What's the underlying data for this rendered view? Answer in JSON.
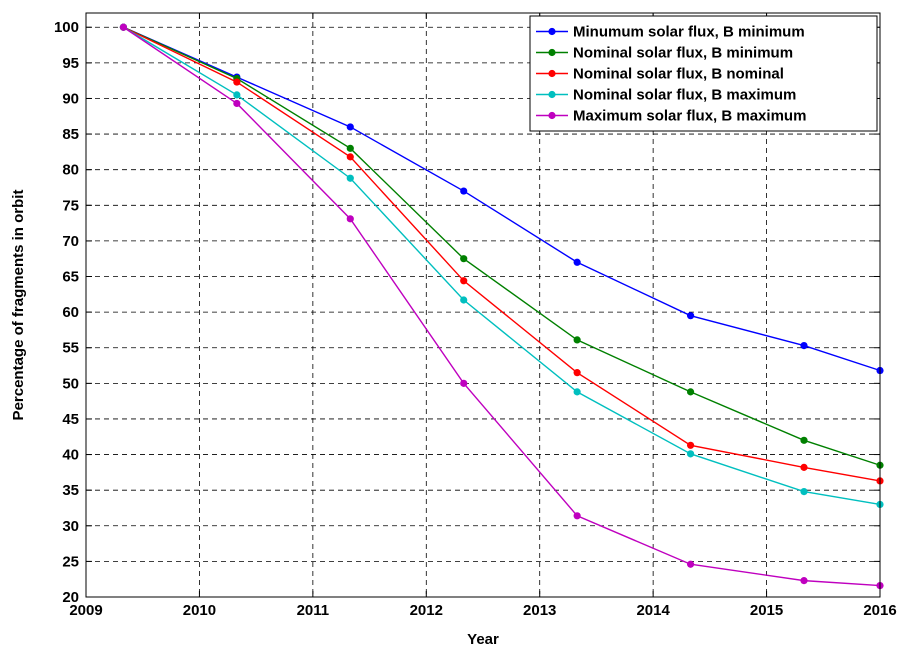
{
  "chart_data": {
    "type": "line",
    "title": "",
    "xlabel": "Year",
    "ylabel": "Percentage of fragments in orbit",
    "xlim": [
      2009,
      2016
    ],
    "ylim": [
      20,
      102
    ],
    "xticks": [
      2009,
      2010,
      2011,
      2012,
      2013,
      2014,
      2015,
      2016
    ],
    "yticks": [
      20,
      25,
      30,
      35,
      40,
      45,
      50,
      55,
      60,
      65,
      70,
      75,
      80,
      85,
      90,
      95,
      100
    ],
    "grid": true,
    "grid_style": "dashed",
    "legend_position": "top-right",
    "x": [
      2009.33,
      2010.33,
      2011.33,
      2012.33,
      2013.33,
      2014.33,
      2015.33,
      2016.0
    ],
    "series": [
      {
        "name": "Minumum solar flux, B minimum",
        "color": "#0000ff",
        "values": [
          100,
          93,
          86,
          77,
          67,
          59.5,
          55.3,
          51.8
        ]
      },
      {
        "name": "Nominal solar flux, B minimum",
        "color": "#008000",
        "values": [
          100,
          92.8,
          83,
          67.5,
          56.1,
          48.8,
          42,
          38.5
        ]
      },
      {
        "name": "Nominal solar flux, B nominal",
        "color": "#ff0000",
        "values": [
          100,
          92.3,
          81.8,
          64.4,
          51.5,
          41.3,
          38.2,
          36.3
        ]
      },
      {
        "name": "Nominal solar flux, B maximum",
        "color": "#00bfbf",
        "values": [
          100,
          90.5,
          78.8,
          61.7,
          48.8,
          40.1,
          34.8,
          33
        ]
      },
      {
        "name": "Maximum solar flux, B maximum",
        "color": "#bf00bf",
        "values": [
          100,
          89.3,
          73.1,
          50,
          31.4,
          24.6,
          22.3,
          21.6
        ]
      }
    ]
  }
}
